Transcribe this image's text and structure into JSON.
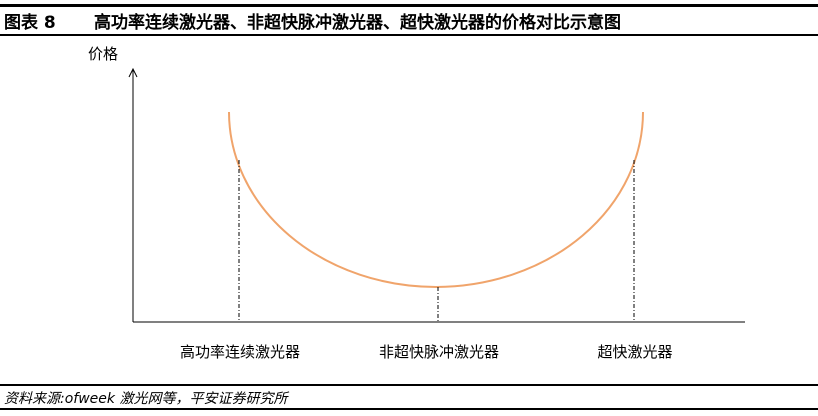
{
  "title": {
    "figure_no": "图表 8",
    "text": "高功率连续激光器、非超快脉冲激光器、超快激光器的价格对比示意图"
  },
  "diagram": {
    "y_axis_label": "价格",
    "categories": [
      "高功率连续激光器",
      "非超快脉冲激光器",
      "超快激光器"
    ],
    "curve_color": "#F0A46B",
    "shape": "U-shaped curve: lowest price at 非超快脉冲激光器, higher at both ends"
  },
  "source": "资料来源:ofweek 激光网等，平安证券研究所"
}
